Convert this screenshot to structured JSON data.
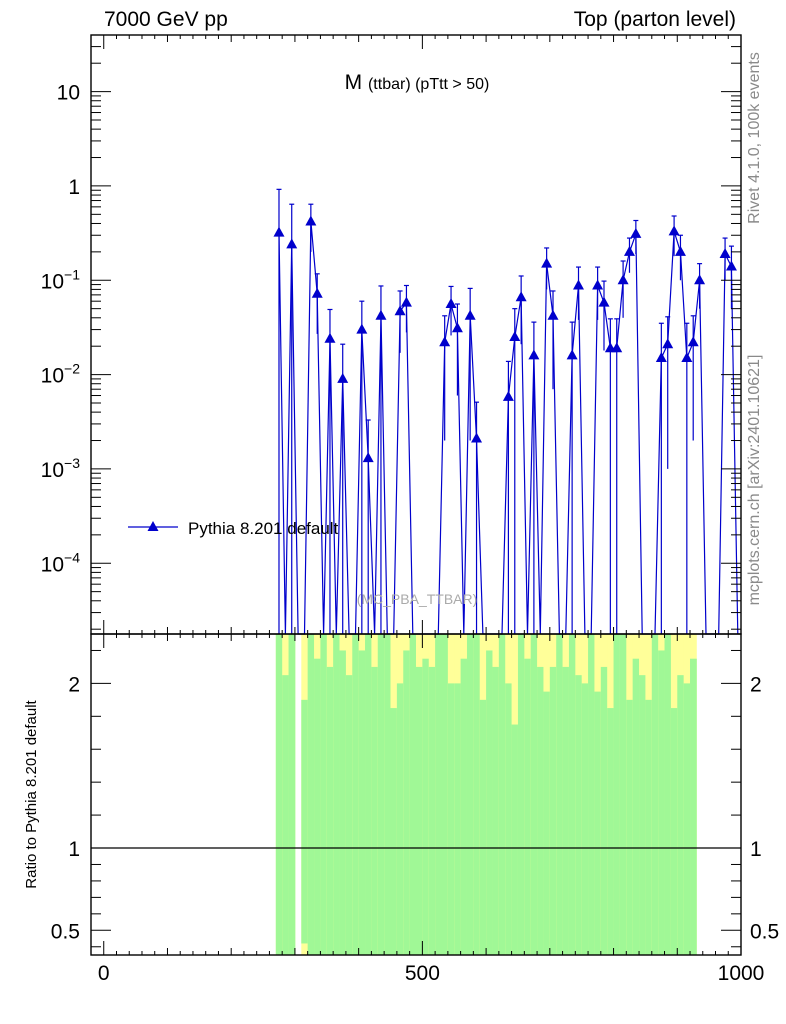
{
  "header": {
    "left": "7000 GeV pp",
    "right": "Top (parton level)"
  },
  "side": {
    "rivet": "Rivet 4.1.0,  100k events",
    "mcplots": "mcplots.cern.ch [arXiv:2401.10621]"
  },
  "ratio_ylabel": "Ratio to Pythia 8.201 default",
  "colors": {
    "series": "#0000cc",
    "band_inner": "#a0f896",
    "band_outer": "#ffff99",
    "watermark": "#aaaaaa"
  },
  "chart_data": [
    {
      "type": "line",
      "role": "main",
      "title_main": "M",
      "title_sub": "(ttbar) (pTtt > 50)",
      "watermark": "(MC_PBA_TTBAR)",
      "xlim": [
        -20,
        1000
      ],
      "ylim_log10": [
        -4.75,
        1.6
      ],
      "yscale": "log",
      "yticks": [
        {
          "v": 1,
          "base": "10",
          "exp": ""
        },
        {
          "v": 0,
          "base": "1",
          "exp": ""
        },
        {
          "v": -1,
          "base": "10",
          "exp": "−1"
        },
        {
          "v": -2,
          "base": "10",
          "exp": "−2"
        },
        {
          "v": -3,
          "base": "10",
          "exp": "−3"
        },
        {
          "v": -4,
          "base": "10",
          "exp": "−4"
        }
      ],
      "series": [
        {
          "name": "Pythia 8.201 default",
          "marker": "triangle-up",
          "x": [
            275,
            285,
            295,
            305,
            315,
            325,
            335,
            345,
            355,
            365,
            375,
            385,
            395,
            405,
            415,
            425,
            435,
            445,
            455,
            465,
            475,
            485,
            495,
            505,
            515,
            525,
            535,
            545,
            555,
            565,
            575,
            585,
            595,
            605,
            615,
            625,
            635,
            645,
            655,
            665,
            675,
            685,
            695,
            705,
            715,
            725,
            735,
            745,
            755,
            765,
            775,
            785,
            795,
            805,
            815,
            825,
            835,
            845,
            855,
            865,
            875,
            885,
            895,
            905,
            915,
            925,
            935,
            945,
            955,
            965,
            975,
            985,
            995
          ],
          "y": [
            0.32,
            0,
            0.24,
            0,
            0,
            0.42,
            0.072,
            0,
            0.024,
            0,
            0.009,
            0,
            0,
            0.03,
            0.0013,
            0,
            0.042,
            0,
            0,
            0.047,
            0.058,
            0,
            0,
            0,
            0,
            0,
            0.022,
            0.056,
            0.031,
            0,
            0.042,
            0.0021,
            0,
            0,
            0,
            0,
            0.0058,
            0.025,
            0.066,
            0,
            0.016,
            0,
            0.15,
            0.042,
            0,
            0,
            0.016,
            0.088,
            0,
            0,
            0.088,
            0.058,
            0.019,
            0.019,
            0.1,
            0.2,
            0.31,
            0,
            0,
            0,
            0.015,
            0.021,
            0.33,
            0.2,
            0.015,
            0.022,
            0.1,
            0,
            0,
            0,
            0.19,
            0.14,
            0
          ],
          "yerr": [
            0.6,
            0,
            0.4,
            0,
            0,
            0.22,
            0.045,
            0,
            0.025,
            0,
            0.012,
            0,
            0,
            0.03,
            0.002,
            0,
            0.045,
            0,
            0,
            0.03,
            0.03,
            0,
            0,
            0,
            0,
            0,
            0.02,
            0.03,
            0.025,
            0,
            0.04,
            0.003,
            0,
            0,
            0,
            0,
            0.008,
            0.025,
            0.045,
            0,
            0.02,
            0,
            0.07,
            0.035,
            0,
            0,
            0.02,
            0.05,
            0,
            0,
            0.05,
            0.04,
            0.02,
            0.02,
            0.06,
            0.08,
            0.12,
            0,
            0,
            0,
            0.02,
            0.02,
            0.15,
            0.1,
            0.02,
            0.02,
            0.05,
            0,
            0,
            0,
            0.09,
            0.09,
            0
          ]
        }
      ]
    },
    {
      "type": "area",
      "role": "ratio",
      "xlim": [
        -20,
        1000
      ],
      "ylim": [
        0.35,
        2.3
      ],
      "yticks": [
        0.5,
        1,
        2
      ],
      "xticks": [
        0,
        500,
        1000
      ],
      "reference_line": 1,
      "band_x_start": 270,
      "band_bin_width": 10,
      "band_present": [
        1,
        1,
        1,
        0,
        1,
        1,
        1,
        1,
        1,
        1,
        1,
        1,
        1,
        1,
        1,
        1,
        1,
        1,
        1,
        1,
        1,
        1,
        1,
        1,
        1,
        1,
        1,
        1,
        1,
        1,
        1,
        1,
        1,
        1,
        1,
        1,
        1,
        1,
        1,
        1,
        1,
        1,
        1,
        1,
        1,
        1,
        1,
        1,
        1,
        1,
        1,
        1,
        1,
        1,
        1,
        1,
        1,
        1,
        1,
        1,
        1,
        1,
        1,
        1,
        1,
        1
      ],
      "band_inner_upper": [
        2.3,
        2.05,
        2.3,
        2.3,
        1.9,
        2.3,
        2.15,
        2.3,
        2.1,
        2.3,
        2.2,
        2.05,
        2.3,
        2.2,
        2.3,
        2.1,
        2.3,
        2.3,
        1.85,
        2.0,
        2.2,
        2.3,
        2.1,
        2.15,
        2.1,
        2.3,
        2.3,
        2.0,
        2.0,
        2.15,
        2.3,
        2.3,
        1.9,
        2.2,
        2.1,
        2.3,
        2.0,
        1.75,
        2.3,
        2.15,
        2.3,
        2.1,
        1.95,
        2.1,
        2.3,
        2.1,
        2.3,
        2.05,
        2.0,
        2.3,
        1.95,
        2.1,
        1.85,
        2.3,
        2.3,
        1.9,
        2.15,
        2.05,
        1.9,
        2.3,
        2.2,
        2.3,
        1.85,
        2.05,
        2.0,
        2.15
      ],
      "band_outer_upper": [
        2.3,
        2.3,
        2.3,
        2.3,
        2.3,
        2.3,
        2.3,
        2.3,
        2.3,
        2.3,
        2.3,
        2.3,
        2.3,
        2.3,
        2.3,
        2.3,
        2.3,
        2.3,
        2.3,
        2.3,
        2.3,
        2.3,
        2.3,
        2.3,
        2.3,
        2.3,
        2.3,
        2.3,
        2.3,
        2.3,
        2.3,
        2.3,
        2.3,
        2.3,
        2.3,
        2.3,
        2.3,
        2.3,
        2.3,
        2.3,
        2.3,
        2.3,
        2.3,
        2.3,
        2.3,
        2.3,
        2.3,
        2.3,
        2.3,
        2.3,
        2.3,
        2.3,
        2.3,
        2.3,
        2.3,
        2.3,
        2.3,
        2.3,
        2.3,
        2.3,
        2.3,
        2.3,
        2.3,
        2.3,
        2.3,
        2.3
      ],
      "band_inner_lower": [
        0.35,
        0.35,
        0.35,
        0.35,
        0.42,
        0.35,
        0.35,
        0.35,
        0.35,
        0.35,
        0.35,
        0.35,
        0.35,
        0.35,
        0.35,
        0.35,
        0.35,
        0.35,
        0.35,
        0.35,
        0.35,
        0.35,
        0.35,
        0.35,
        0.35,
        0.35,
        0.35,
        0.35,
        0.35,
        0.35,
        0.35,
        0.35,
        0.35,
        0.35,
        0.35,
        0.35,
        0.35,
        0.35,
        0.35,
        0.35,
        0.35,
        0.35,
        0.35,
        0.35,
        0.35,
        0.35,
        0.35,
        0.35,
        0.35,
        0.35,
        0.35,
        0.35,
        0.35,
        0.35,
        0.35,
        0.35,
        0.35,
        0.35,
        0.35,
        0.35,
        0.35,
        0.35,
        0.35,
        0.35,
        0.35,
        0.35
      ],
      "band_outer_lower": [
        0.35,
        0.35,
        0.35,
        0.35,
        0.35,
        0.35,
        0.35,
        0.35,
        0.35,
        0.35,
        0.35,
        0.35,
        0.35,
        0.35,
        0.35,
        0.35,
        0.35,
        0.35,
        0.35,
        0.35,
        0.35,
        0.35,
        0.35,
        0.35,
        0.35,
        0.35,
        0.35,
        0.35,
        0.35,
        0.35,
        0.35,
        0.35,
        0.35,
        0.35,
        0.35,
        0.35,
        0.35,
        0.35,
        0.35,
        0.35,
        0.35,
        0.35,
        0.35,
        0.35,
        0.35,
        0.35,
        0.35,
        0.35,
        0.35,
        0.35,
        0.35,
        0.35,
        0.35,
        0.35,
        0.35,
        0.35,
        0.35,
        0.35,
        0.35,
        0.35,
        0.35,
        0.35,
        0.35,
        0.35,
        0.35,
        0.35
      ]
    }
  ]
}
